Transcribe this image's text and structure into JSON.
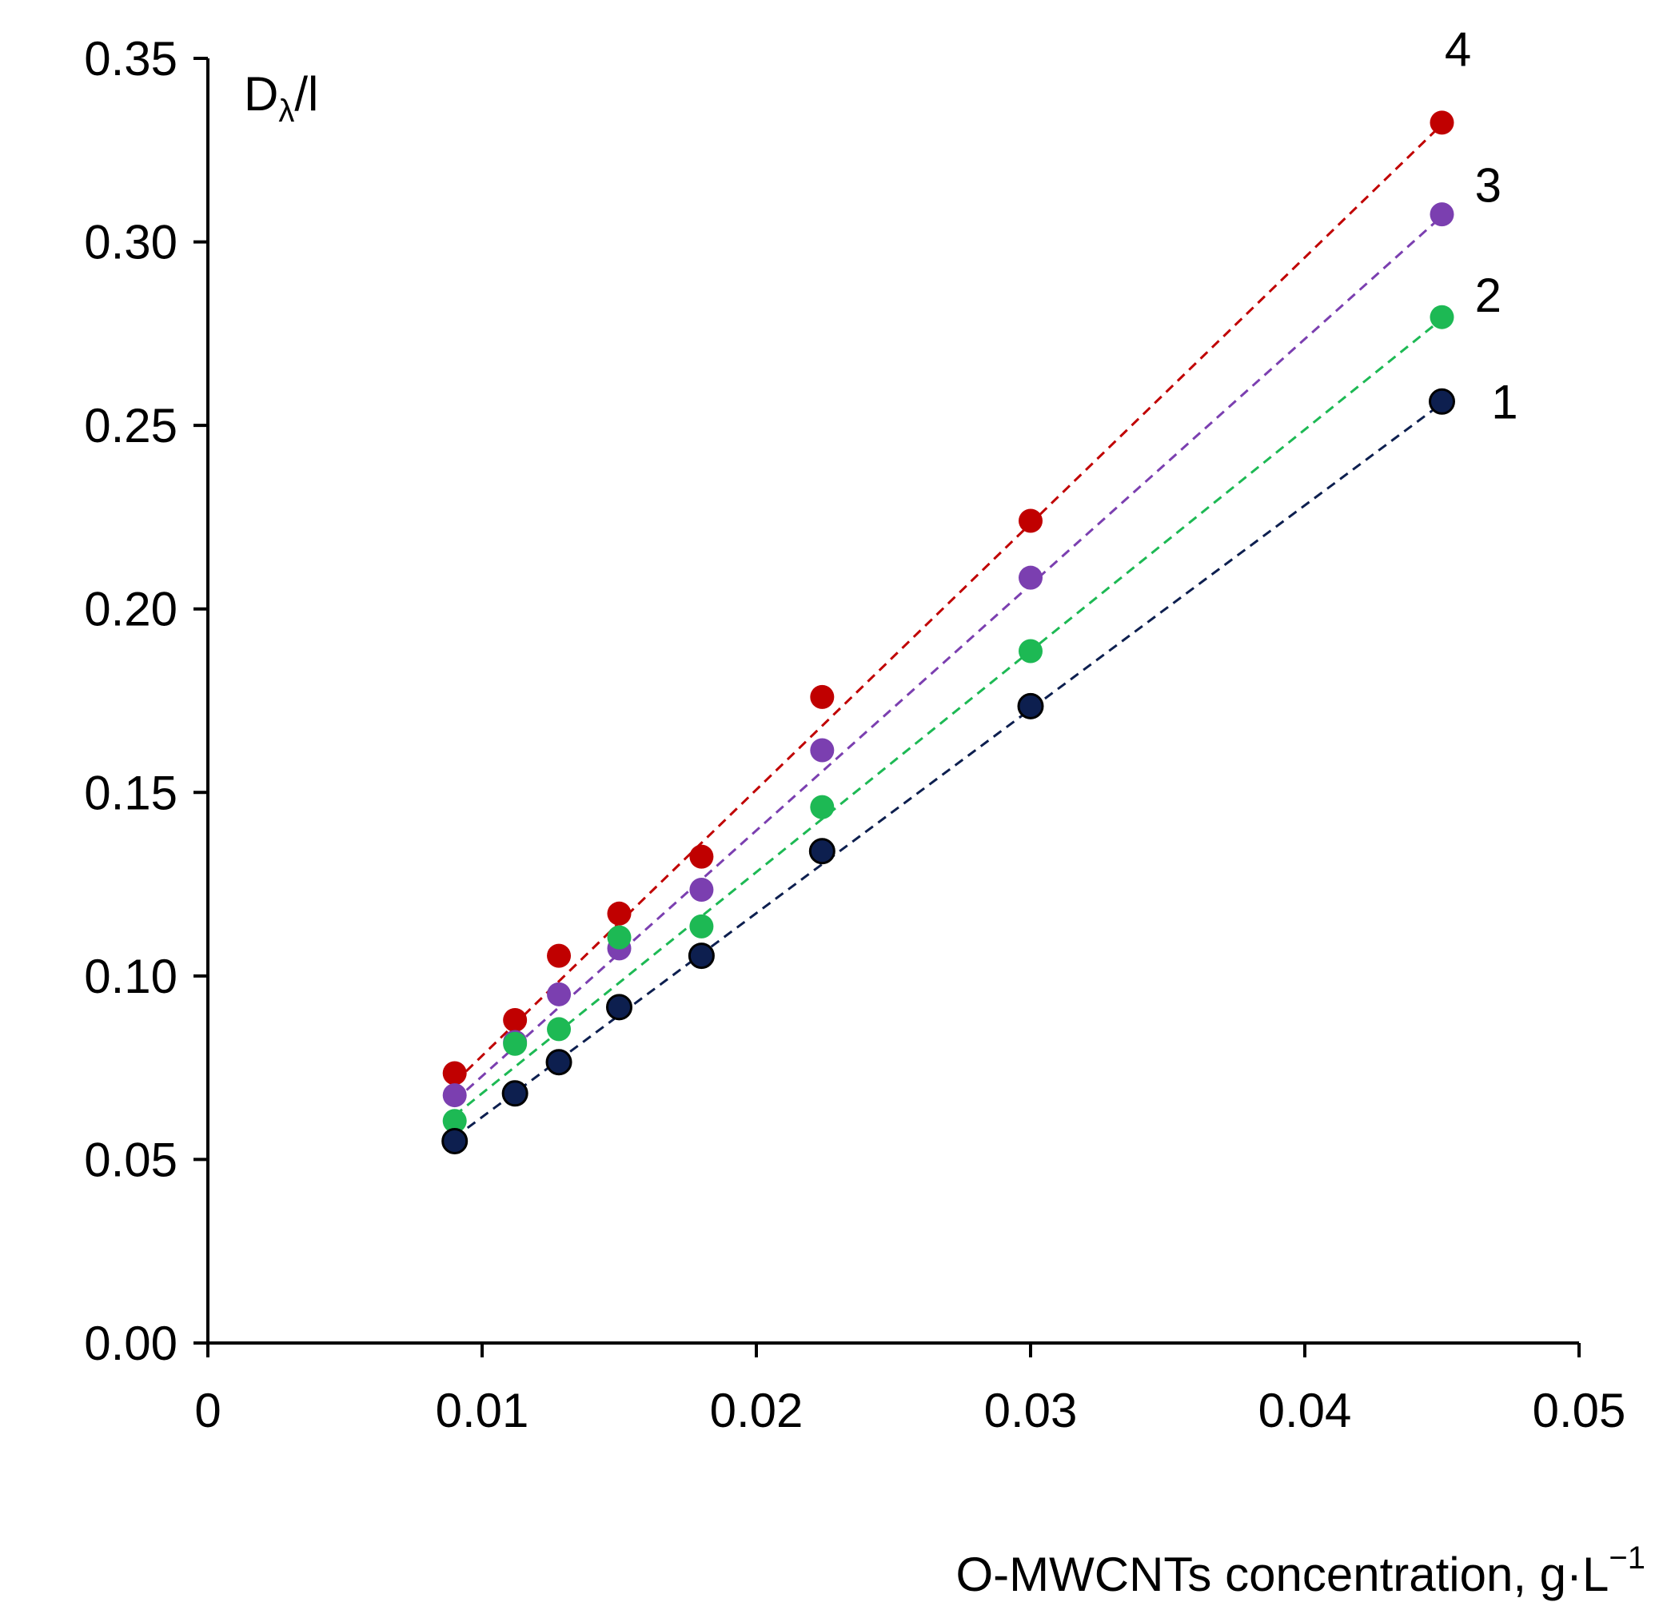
{
  "chart_data": {
    "type": "scatter",
    "title": "",
    "ylabel_main": "D",
    "ylabel_sub": "λ",
    "ylabel_rest": "/l",
    "xlabel_main": "O-MWCNTs concentration, g·L",
    "xlabel_sup": "−1",
    "xlim": [
      0,
      0.05
    ],
    "ylim": [
      0,
      0.35
    ],
    "grid": false,
    "xticks": [
      {
        "value": 0,
        "label": "0"
      },
      {
        "value": 0.01,
        "label": "0.01"
      },
      {
        "value": 0.02,
        "label": "0.02"
      },
      {
        "value": 0.03,
        "label": "0.03"
      },
      {
        "value": 0.04,
        "label": "0.04"
      },
      {
        "value": 0.05,
        "label": "0.05"
      }
    ],
    "yticks": [
      {
        "value": 0.0,
        "label": "0.00"
      },
      {
        "value": 0.05,
        "label": "0.05"
      },
      {
        "value": 0.1,
        "label": "0.10"
      },
      {
        "value": 0.15,
        "label": "0.15"
      },
      {
        "value": 0.2,
        "label": "0.20"
      },
      {
        "value": 0.25,
        "label": "0.25"
      },
      {
        "value": 0.3,
        "label": "0.30"
      },
      {
        "value": 0.35,
        "label": "0.35"
      }
    ],
    "series": [
      {
        "name": "1",
        "color": "#0d1f4f",
        "outlined": true,
        "x": [
          0.009,
          0.0112,
          0.0128,
          0.015,
          0.018,
          0.0224,
          0.03,
          0.045
        ],
        "y": [
          0.055,
          0.068,
          0.0765,
          0.0915,
          0.1055,
          0.134,
          0.1735,
          0.2565
        ],
        "trend": [
          [
            0.009,
            0.056
          ],
          [
            0.045,
            0.256
          ]
        ]
      },
      {
        "name": "2",
        "color": "#1db954",
        "outlined": false,
        "x": [
          0.009,
          0.0112,
          0.0128,
          0.015,
          0.018,
          0.0224,
          0.03,
          0.045
        ],
        "y": [
          0.0605,
          0.0815,
          0.0855,
          0.1105,
          0.1135,
          0.146,
          0.1885,
          0.2795
        ],
        "trend": [
          [
            0.009,
            0.062
          ],
          [
            0.045,
            0.279
          ]
        ]
      },
      {
        "name": "3",
        "color": "#7b3fb0",
        "outlined": false,
        "x": [
          0.009,
          0.0112,
          0.0128,
          0.015,
          0.018,
          0.0224,
          0.03,
          0.045
        ],
        "y": [
          0.0675,
          0.082,
          0.095,
          0.1075,
          0.1235,
          0.1615,
          0.2085,
          0.3075
        ],
        "trend": [
          [
            0.009,
            0.066
          ],
          [
            0.045,
            0.307
          ]
        ]
      },
      {
        "name": "4",
        "color": "#c00000",
        "outlined": false,
        "x": [
          0.009,
          0.0112,
          0.0128,
          0.015,
          0.018,
          0.0224,
          0.03,
          0.045
        ],
        "y": [
          0.0735,
          0.088,
          0.1055,
          0.117,
          0.1325,
          0.176,
          0.224,
          0.3325
        ],
        "trend": [
          [
            0.009,
            0.071
          ],
          [
            0.045,
            0.332
          ]
        ]
      }
    ],
    "series_label_anchor": [
      {
        "name": "1",
        "x": 0.0468,
        "y": 0.2565
      },
      {
        "name": "2",
        "x": 0.0462,
        "y": 0.2855
      },
      {
        "name": "3",
        "x": 0.0462,
        "y": 0.3155
      },
      {
        "name": "4",
        "x": 0.0451,
        "y": 0.3525
      }
    ]
  }
}
